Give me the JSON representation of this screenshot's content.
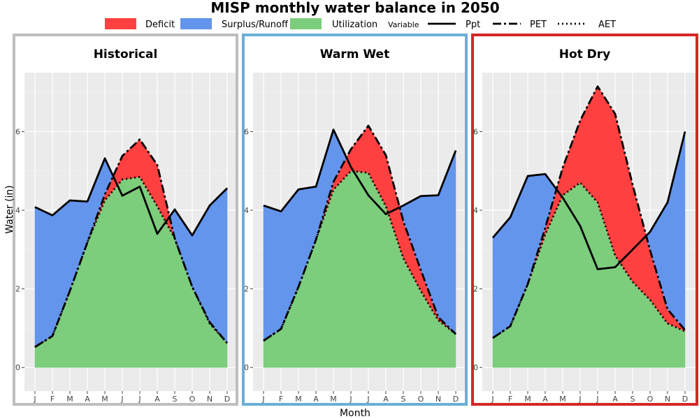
{
  "chart_data": {
    "type": "area",
    "title": "MISP monthly water balance in 2050",
    "xlabel": "Month",
    "ylabel": "Water (in)",
    "ylim": [
      -0.6,
      7.5
    ],
    "yticks": [
      0,
      2,
      4,
      6
    ],
    "months": [
      "J",
      "F",
      "M",
      "A",
      "M",
      "J",
      "J",
      "A",
      "S",
      "O",
      "N",
      "D"
    ],
    "legend": {
      "position": "top",
      "fills": [
        {
          "name": "Deficit",
          "color": "#FF4040"
        },
        {
          "name": "Surplus/Runoff",
          "color": "#6495ED"
        },
        {
          "name": "Utilization",
          "color": "#7CCD7C"
        }
      ],
      "variable_title": "Variable",
      "lines": [
        {
          "name": "Ppt",
          "style": "solid"
        },
        {
          "name": "PET",
          "style": "dashdot"
        },
        {
          "name": "AET",
          "style": "dotted"
        }
      ]
    },
    "panels": [
      {
        "name": "Historical",
        "frame_color": "#BEBEBE",
        "ppt": [
          4.08,
          3.87,
          4.25,
          4.22,
          5.32,
          4.37,
          4.6,
          3.4,
          4.02,
          3.36,
          4.12,
          4.56
        ],
        "pet": [
          0.52,
          0.8,
          1.95,
          3.18,
          4.4,
          5.38,
          5.8,
          5.15,
          3.28,
          2.05,
          1.15,
          0.62
        ],
        "aet": [
          0.52,
          0.8,
          1.95,
          3.18,
          4.25,
          4.78,
          4.85,
          4.1,
          3.28,
          2.05,
          1.12,
          0.62
        ]
      },
      {
        "name": "Warm Wet",
        "frame_color": "#6BAED6",
        "ppt": [
          4.12,
          3.97,
          4.53,
          4.6,
          6.05,
          5.1,
          4.38,
          3.9,
          4.12,
          4.36,
          4.38,
          5.52
        ],
        "pet": [
          0.68,
          0.98,
          2.05,
          3.25,
          4.72,
          5.55,
          6.15,
          5.4,
          3.72,
          2.48,
          1.28,
          0.85
        ],
        "aet": [
          0.68,
          0.98,
          2.05,
          3.25,
          4.52,
          5.0,
          4.95,
          4.1,
          2.78,
          1.95,
          1.2,
          0.85
        ]
      },
      {
        "name": "Hot Dry",
        "frame_color": "#D62728",
        "ppt": [
          3.3,
          3.82,
          4.87,
          4.92,
          4.32,
          3.6,
          2.5,
          2.55,
          3.0,
          3.45,
          4.2,
          6.0
        ],
        "pet": [
          0.75,
          1.05,
          2.12,
          3.55,
          5.08,
          6.28,
          7.15,
          6.45,
          4.65,
          2.98,
          1.48,
          0.95
        ],
        "aet": [
          0.75,
          1.05,
          2.12,
          3.38,
          4.38,
          4.7,
          4.2,
          2.85,
          2.18,
          1.72,
          1.12,
          0.92
        ]
      }
    ]
  }
}
